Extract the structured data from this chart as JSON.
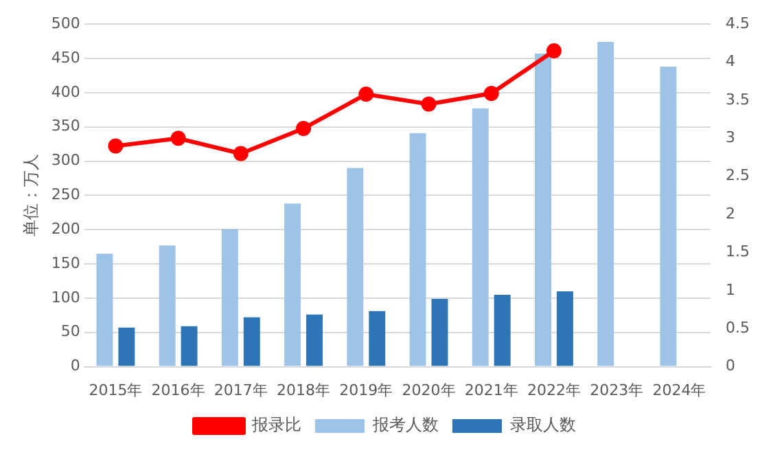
{
  "chart_data": {
    "type": "bar",
    "ylabel": "单位：万人",
    "categories": [
      "2015年",
      "2016年",
      "2017年",
      "2018年",
      "2019年",
      "2020年",
      "2021年",
      "2022年",
      "2023年",
      "2024年"
    ],
    "series": [
      {
        "name": "报考人数",
        "color": "#9dc3e6",
        "values": [
          165,
          177,
          201,
          238,
          290,
          341,
          377,
          457,
          474,
          438
        ]
      },
      {
        "name": "录取人数",
        "color": "#2e75b6",
        "values": [
          57,
          59,
          72,
          76,
          81,
          99,
          105,
          110,
          null,
          null
        ]
      },
      {
        "name": "报录比",
        "type": "line",
        "axis": "y2",
        "color": "#ff0000",
        "marker": "circle",
        "values": [
          2.9,
          3.0,
          2.8,
          3.13,
          3.58,
          3.45,
          3.59,
          4.15,
          null,
          null
        ]
      }
    ],
    "ylim": [
      0,
      500
    ],
    "yticks": [
      0,
      50,
      100,
      150,
      200,
      250,
      300,
      350,
      400,
      450,
      500
    ],
    "y2lim": [
      0,
      4.5
    ],
    "y2ticks": [
      0,
      0.5,
      1,
      1.5,
      2,
      2.5,
      3,
      3.5,
      4,
      4.5
    ],
    "grid": "y",
    "legend": "bottom"
  }
}
